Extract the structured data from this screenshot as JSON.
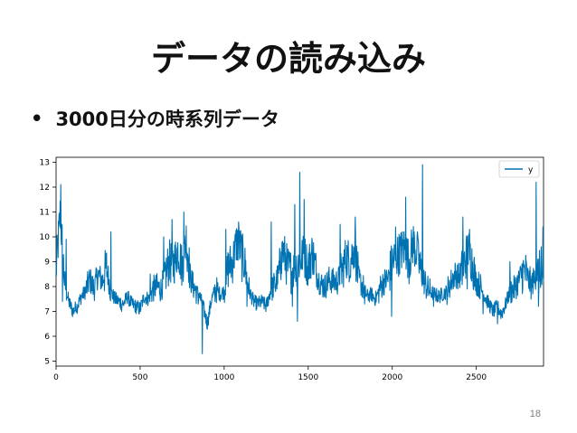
{
  "slide": {
    "title": "データの読み込み",
    "bullet": "•",
    "bullet_text": "3000日分の時系列データ",
    "page_number": "18"
  },
  "chart_data": {
    "type": "line",
    "title": "",
    "xlabel": "",
    "ylabel": "",
    "xlim": [
      0,
      2900
    ],
    "ylim": [
      4.8,
      13.2
    ],
    "x_ticks": [
      0,
      500,
      1000,
      1500,
      2000,
      2500
    ],
    "x_tick_labels": [
      "0",
      "500",
      "1000",
      "1500",
      "2000",
      "2500"
    ],
    "y_ticks": [
      5,
      6,
      7,
      8,
      9,
      10,
      11,
      12,
      13
    ],
    "y_tick_labels": [
      "5",
      "6",
      "7",
      "8",
      "9",
      "10",
      "11",
      "12",
      "13"
    ],
    "grid": false,
    "legend": "top-right",
    "series": [
      {
        "name": "y",
        "color": "#0072b2",
        "x": [
          0,
          25,
          50,
          75,
          100,
          125,
          150,
          175,
          200,
          225,
          250,
          275,
          300,
          325,
          350,
          375,
          400,
          425,
          450,
          475,
          500,
          525,
          550,
          575,
          600,
          625,
          650,
          675,
          700,
          725,
          750,
          775,
          800,
          825,
          850,
          875,
          900,
          925,
          950,
          975,
          1000,
          1025,
          1050,
          1075,
          1100,
          1125,
          1150,
          1175,
          1200,
          1225,
          1250,
          1275,
          1300,
          1325,
          1350,
          1375,
          1400,
          1425,
          1450,
          1475,
          1500,
          1525,
          1550,
          1575,
          1600,
          1625,
          1650,
          1675,
          1700,
          1725,
          1750,
          1775,
          1800,
          1825,
          1850,
          1875,
          1900,
          1925,
          1950,
          1975,
          2000,
          2025,
          2050,
          2075,
          2100,
          2125,
          2150,
          2175,
          2200,
          2225,
          2250,
          2275,
          2300,
          2325,
          2350,
          2375,
          2400,
          2425,
          2450,
          2475,
          2500,
          2525,
          2550,
          2575,
          2600,
          2625,
          2650,
          2675,
          2700,
          2725,
          2750,
          2775,
          2800,
          2825,
          2850,
          2875,
          2900
        ],
        "y": [
          8.6,
          11.0,
          8.2,
          7.4,
          7.0,
          7.2,
          7.6,
          7.8,
          8.3,
          7.9,
          8.5,
          8.2,
          8.8,
          7.8,
          7.5,
          7.4,
          7.3,
          7.6,
          7.3,
          7.2,
          7.1,
          7.6,
          7.5,
          7.9,
          8.0,
          7.9,
          8.5,
          9.0,
          8.9,
          9.5,
          8.8,
          10.0,
          8.3,
          7.9,
          7.7,
          7.2,
          6.5,
          7.5,
          7.9,
          7.7,
          7.8,
          8.8,
          9.0,
          9.8,
          9.5,
          8.8,
          7.8,
          7.4,
          7.3,
          7.4,
          7.2,
          7.8,
          8.1,
          8.5,
          9.5,
          8.8,
          8.6,
          8.8,
          9.0,
          9.3,
          8.8,
          9.4,
          8.5,
          8.1,
          8.0,
          8.3,
          8.2,
          8.2,
          8.6,
          9.2,
          9.0,
          9.6,
          8.3,
          8.0,
          7.6,
          7.7,
          7.5,
          7.9,
          8.2,
          8.3,
          9.0,
          9.2,
          9.4,
          9.6,
          9.0,
          9.8,
          9.2,
          8.5,
          8.0,
          7.8,
          7.7,
          7.6,
          7.7,
          7.8,
          8.2,
          8.5,
          8.4,
          8.8,
          9.5,
          9.0,
          8.2,
          8.0,
          7.6,
          7.3,
          7.0,
          7.2,
          6.9,
          7.3,
          7.8,
          7.9,
          8.2,
          8.6,
          8.5,
          8.0,
          8.4,
          8.6,
          8.0
        ]
      }
    ],
    "spikes": [
      {
        "x": 8,
        "y": 9.7
      },
      {
        "x": 28,
        "y": 12.1
      },
      {
        "x": 38,
        "y": 7.4
      },
      {
        "x": 60,
        "y": 9.9
      },
      {
        "x": 118,
        "y": 7.0
      },
      {
        "x": 325,
        "y": 10.2
      },
      {
        "x": 345,
        "y": 7.8
      },
      {
        "x": 390,
        "y": 7.0
      },
      {
        "x": 560,
        "y": 8.5
      },
      {
        "x": 640,
        "y": 10.0
      },
      {
        "x": 690,
        "y": 10.7
      },
      {
        "x": 760,
        "y": 11.0
      },
      {
        "x": 780,
        "y": 8.6
      },
      {
        "x": 845,
        "y": 7.3
      },
      {
        "x": 870,
        "y": 5.3
      },
      {
        "x": 890,
        "y": 6.9
      },
      {
        "x": 1010,
        "y": 10.3
      },
      {
        "x": 1085,
        "y": 10.6
      },
      {
        "x": 1105,
        "y": 8.2
      },
      {
        "x": 1135,
        "y": 7.2
      },
      {
        "x": 1280,
        "y": 10.6
      },
      {
        "x": 1305,
        "y": 7.8
      },
      {
        "x": 1340,
        "y": 9.4
      },
      {
        "x": 1405,
        "y": 7.2
      },
      {
        "x": 1420,
        "y": 11.3
      },
      {
        "x": 1435,
        "y": 6.6
      },
      {
        "x": 1450,
        "y": 12.6
      },
      {
        "x": 1465,
        "y": 8.7
      },
      {
        "x": 1475,
        "y": 11.5
      },
      {
        "x": 1495,
        "y": 8.8
      },
      {
        "x": 1690,
        "y": 10.5
      },
      {
        "x": 1780,
        "y": 10.8
      },
      {
        "x": 1835,
        "y": 7.3
      },
      {
        "x": 1995,
        "y": 6.8
      },
      {
        "x": 2020,
        "y": 10.4
      },
      {
        "x": 2050,
        "y": 10.0
      },
      {
        "x": 2080,
        "y": 11.6
      },
      {
        "x": 2150,
        "y": 10.2
      },
      {
        "x": 2180,
        "y": 12.9
      },
      {
        "x": 2195,
        "y": 8.6
      },
      {
        "x": 2245,
        "y": 7.2
      },
      {
        "x": 2330,
        "y": 7.6
      },
      {
        "x": 2420,
        "y": 10.8
      },
      {
        "x": 2445,
        "y": 7.9
      },
      {
        "x": 2460,
        "y": 10.3
      },
      {
        "x": 2540,
        "y": 6.9
      },
      {
        "x": 2625,
        "y": 6.5
      },
      {
        "x": 2700,
        "y": 9.0
      },
      {
        "x": 2820,
        "y": 8.8
      },
      {
        "x": 2855,
        "y": 12.2
      },
      {
        "x": 2870,
        "y": 7.2
      },
      {
        "x": 2885,
        "y": 9.6
      },
      {
        "x": 2895,
        "y": 10.4
      }
    ]
  }
}
